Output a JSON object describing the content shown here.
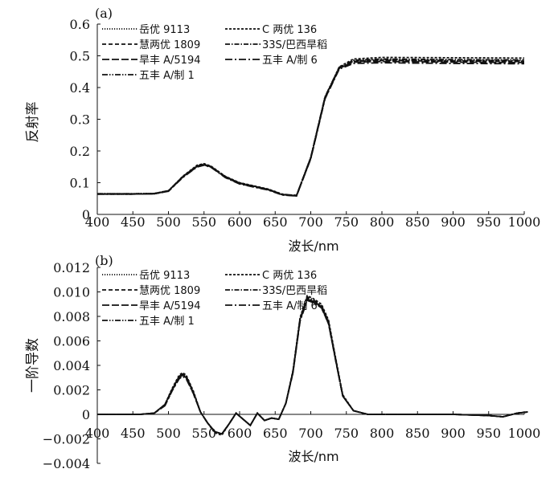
{
  "chart_data": [
    {
      "type": "line",
      "panel_label": "(a)",
      "title": "",
      "xlabel": "波长/nm",
      "ylabel": "反射率",
      "xlim": [
        400,
        1000
      ],
      "ylim": [
        0,
        0.6
      ],
      "x_ticks": [
        "400",
        "450",
        "500",
        "550",
        "600",
        "650",
        "700",
        "750",
        "800",
        "850",
        "900",
        "950",
        "1000"
      ],
      "y_ticks": [
        "0",
        "0.1",
        "0.2",
        "0.3",
        "0.4",
        "0.5",
        "0.6"
      ],
      "grid": false,
      "legend_position": "top",
      "series": [
        {
          "name": "岳优 9113",
          "style": "dotted",
          "x": [
            400,
            450,
            480,
            500,
            520,
            540,
            550,
            560,
            580,
            600,
            620,
            640,
            660,
            680,
            700,
            720,
            740,
            760,
            800,
            900,
            1000
          ],
          "y": [
            0.065,
            0.065,
            0.066,
            0.075,
            0.118,
            0.152,
            0.158,
            0.15,
            0.118,
            0.098,
            0.088,
            0.078,
            0.062,
            0.06,
            0.18,
            0.37,
            0.462,
            0.485,
            0.488,
            0.486,
            0.487
          ]
        },
        {
          "name": "C 两优 136",
          "style": "short-dash",
          "x": [
            400,
            450,
            480,
            500,
            520,
            540,
            550,
            560,
            580,
            600,
            620,
            640,
            660,
            680,
            700,
            720,
            740,
            760,
            800,
            900,
            1000
          ],
          "y": [
            0.064,
            0.064,
            0.065,
            0.074,
            0.12,
            0.155,
            0.16,
            0.152,
            0.12,
            0.1,
            0.09,
            0.08,
            0.064,
            0.059,
            0.178,
            0.368,
            0.465,
            0.49,
            0.495,
            0.494,
            0.493
          ]
        },
        {
          "name": "慧两优 1809",
          "style": "dash",
          "x": [
            400,
            450,
            480,
            500,
            520,
            540,
            550,
            560,
            580,
            600,
            620,
            640,
            660,
            680,
            700,
            720,
            740,
            760,
            800,
            900,
            1000
          ],
          "y": [
            0.064,
            0.064,
            0.065,
            0.073,
            0.117,
            0.15,
            0.156,
            0.149,
            0.117,
            0.097,
            0.087,
            0.078,
            0.062,
            0.058,
            0.176,
            0.365,
            0.46,
            0.482,
            0.485,
            0.483,
            0.482
          ]
        },
        {
          "name": "33S/巴西旱稻",
          "style": "dash-dot",
          "x": [
            400,
            450,
            480,
            500,
            520,
            540,
            550,
            560,
            580,
            600,
            620,
            640,
            660,
            680,
            700,
            720,
            740,
            760,
            800,
            900,
            1000
          ],
          "y": [
            0.065,
            0.065,
            0.066,
            0.074,
            0.119,
            0.153,
            0.159,
            0.151,
            0.119,
            0.099,
            0.089,
            0.079,
            0.063,
            0.06,
            0.179,
            0.369,
            0.463,
            0.486,
            0.49,
            0.488,
            0.487
          ]
        },
        {
          "name": "旱丰 A/5194",
          "style": "long-dash",
          "x": [
            400,
            450,
            480,
            500,
            520,
            540,
            550,
            560,
            580,
            600,
            620,
            640,
            660,
            680,
            700,
            720,
            740,
            760,
            800,
            900,
            1000
          ],
          "y": [
            0.064,
            0.064,
            0.065,
            0.074,
            0.118,
            0.151,
            0.157,
            0.15,
            0.118,
            0.098,
            0.088,
            0.078,
            0.062,
            0.059,
            0.177,
            0.366,
            0.461,
            0.48,
            0.482,
            0.48,
            0.479
          ]
        },
        {
          "name": "五丰 A/制 6",
          "style": "long-dash-dot",
          "x": [
            400,
            450,
            480,
            500,
            520,
            540,
            550,
            560,
            580,
            600,
            620,
            640,
            660,
            680,
            700,
            720,
            740,
            760,
            800,
            900,
            1000
          ],
          "y": [
            0.064,
            0.064,
            0.065,
            0.073,
            0.116,
            0.149,
            0.155,
            0.148,
            0.116,
            0.096,
            0.086,
            0.077,
            0.061,
            0.058,
            0.175,
            0.364,
            0.458,
            0.476,
            0.478,
            0.476,
            0.475
          ]
        },
        {
          "name": "五丰 A/制 1",
          "style": "dash-dot-dot",
          "x": [
            400,
            450,
            480,
            500,
            520,
            540,
            550,
            560,
            580,
            600,
            620,
            640,
            660,
            680,
            700,
            720,
            740,
            760,
            800,
            900,
            1000
          ],
          "y": [
            0.065,
            0.065,
            0.066,
            0.075,
            0.119,
            0.152,
            0.158,
            0.15,
            0.119,
            0.099,
            0.089,
            0.079,
            0.063,
            0.06,
            0.18,
            0.371,
            0.464,
            0.483,
            0.486,
            0.484,
            0.484
          ]
        }
      ]
    },
    {
      "type": "line",
      "panel_label": "(b)",
      "title": "",
      "xlabel": "波长/nm",
      "ylabel": "一阶导数",
      "xlim": [
        400,
        1000
      ],
      "ylim": [
        -0.004,
        0.012
      ],
      "x_ticks": [
        "400",
        "450",
        "500",
        "550",
        "600",
        "650",
        "700",
        "750",
        "800",
        "850",
        "900",
        "950",
        "1000"
      ],
      "y_ticks": [
        "−0.004",
        "−0.002",
        "0",
        "0.002",
        "0.004",
        "0.006",
        "0.008",
        "0.010",
        "0.012"
      ],
      "grid": false,
      "legend_position": "top",
      "series": [
        {
          "name": "岳优 9113",
          "style": "dotted",
          "x": [
            400,
            430,
            460,
            480,
            495,
            505,
            515,
            520,
            525,
            535,
            545,
            555,
            565,
            575,
            585,
            595,
            605,
            615,
            625,
            635,
            645,
            655,
            665,
            675,
            685,
            695,
            705,
            715,
            725,
            735,
            745,
            760,
            780,
            850,
            900,
            950,
            970,
            990,
            1005
          ],
          "y": [
            0,
            0,
            0,
            0.0001,
            0.0008,
            0.002,
            0.0031,
            0.0033,
            0.0031,
            0.0018,
            0.0002,
            -0.0007,
            -0.0014,
            -0.0016,
            -0.0008,
            0.0001,
            -0.0004,
            -0.0009,
            0.0001,
            -0.0005,
            -0.0003,
            -0.0004,
            0.0009,
            0.0035,
            0.0078,
            0.0095,
            0.0092,
            0.0088,
            0.0075,
            0.0045,
            0.0015,
            0.0003,
            0,
            0,
            0,
            -0.0001,
            -0.0002,
            0.0001,
            0.0002
          ]
        },
        {
          "name": "C 两优 136",
          "style": "short-dash",
          "x": [
            400,
            430,
            460,
            480,
            495,
            505,
            515,
            520,
            525,
            535,
            545,
            555,
            565,
            575,
            585,
            595,
            605,
            615,
            625,
            635,
            645,
            655,
            665,
            675,
            685,
            695,
            705,
            715,
            725,
            735,
            745,
            760,
            780,
            850,
            900,
            950,
            970,
            990,
            1005
          ],
          "y": [
            0,
            0,
            0,
            0.0001,
            0.0008,
            0.0021,
            0.0032,
            0.0034,
            0.0032,
            0.0019,
            0.0002,
            -0.0007,
            -0.0015,
            -0.0017,
            -0.0008,
            0.0001,
            -0.0004,
            -0.0009,
            0.0001,
            -0.0005,
            -0.0003,
            -0.0004,
            0.0009,
            0.0036,
            0.0079,
            0.0097,
            0.0094,
            0.009,
            0.0077,
            0.0046,
            0.0016,
            0.0003,
            0,
            0,
            0,
            -0.0001,
            -0.0002,
            0.0001,
            0.0002
          ]
        },
        {
          "name": "慧两优 1809",
          "style": "dash",
          "x": [
            400,
            430,
            460,
            480,
            495,
            505,
            515,
            520,
            525,
            535,
            545,
            555,
            565,
            575,
            585,
            595,
            605,
            615,
            625,
            635,
            645,
            655,
            665,
            675,
            685,
            695,
            705,
            715,
            725,
            735,
            745,
            760,
            780,
            850,
            900,
            950,
            970,
            990,
            1005
          ],
          "y": [
            0,
            0,
            0,
            0.0001,
            0.0007,
            0.0019,
            0.003,
            0.0032,
            0.003,
            0.0017,
            0.0002,
            -0.0007,
            -0.0014,
            -0.0016,
            -0.0008,
            0.0001,
            -0.0004,
            -0.0009,
            0.0001,
            -0.0005,
            -0.0003,
            -0.0004,
            0.0009,
            0.0034,
            0.0077,
            0.0094,
            0.0091,
            0.0087,
            0.0074,
            0.0044,
            0.0015,
            0.0003,
            0,
            0,
            0,
            -0.0001,
            -0.0002,
            0.0001,
            0.0002
          ]
        },
        {
          "name": "33S/巴西旱稻",
          "style": "dash-dot",
          "x": [
            400,
            430,
            460,
            480,
            495,
            505,
            515,
            520,
            525,
            535,
            545,
            555,
            565,
            575,
            585,
            595,
            605,
            615,
            625,
            635,
            645,
            655,
            665,
            675,
            685,
            695,
            705,
            715,
            725,
            735,
            745,
            760,
            780,
            850,
            900,
            950,
            970,
            990,
            1005
          ],
          "y": [
            0,
            0,
            0,
            0.0001,
            0.0008,
            0.002,
            0.0031,
            0.0033,
            0.0031,
            0.0018,
            0.0002,
            -0.0007,
            -0.0014,
            -0.0016,
            -0.0008,
            0.0001,
            -0.0004,
            -0.0009,
            0.0001,
            -0.0005,
            -0.0003,
            -0.0004,
            0.0009,
            0.0035,
            0.0078,
            0.0096,
            0.0093,
            0.0089,
            0.0076,
            0.0045,
            0.0015,
            0.0003,
            0,
            0,
            0,
            -0.0001,
            -0.0002,
            0.0001,
            0.0002
          ]
        },
        {
          "name": "旱丰 A/5194",
          "style": "long-dash",
          "x": [
            400,
            430,
            460,
            480,
            495,
            505,
            515,
            520,
            525,
            535,
            545,
            555,
            565,
            575,
            585,
            595,
            605,
            615,
            625,
            635,
            645,
            655,
            665,
            675,
            685,
            695,
            705,
            715,
            725,
            735,
            745,
            760,
            780,
            850,
            900,
            950,
            970,
            990,
            1005
          ],
          "y": [
            0,
            0,
            0,
            0.0001,
            0.0008,
            0.002,
            0.003,
            0.0032,
            0.003,
            0.0018,
            0.0002,
            -0.0007,
            -0.0014,
            -0.0016,
            -0.0008,
            0.0001,
            -0.0004,
            -0.0009,
            0.0001,
            -0.0005,
            -0.0003,
            -0.0004,
            0.0009,
            0.0035,
            0.0077,
            0.0094,
            0.0092,
            0.0088,
            0.0075,
            0.0044,
            0.0015,
            0.0003,
            0,
            0,
            0,
            -0.0001,
            -0.0002,
            0.0001,
            0.0002
          ]
        },
        {
          "name": "五丰 A/制 6",
          "style": "long-dash-dot",
          "x": [
            400,
            430,
            460,
            480,
            495,
            505,
            515,
            520,
            525,
            535,
            545,
            555,
            565,
            575,
            585,
            595,
            605,
            615,
            625,
            635,
            645,
            655,
            665,
            675,
            685,
            695,
            705,
            715,
            725,
            735,
            745,
            760,
            780,
            850,
            900,
            950,
            970,
            990,
            1005
          ],
          "y": [
            0,
            0,
            0,
            0.0001,
            0.0007,
            0.0019,
            0.0029,
            0.0031,
            0.0029,
            0.0017,
            0.0002,
            -0.0007,
            -0.0014,
            -0.0016,
            -0.0008,
            0.0001,
            -0.0004,
            -0.0009,
            0.0001,
            -0.0005,
            -0.0003,
            -0.0004,
            0.0009,
            0.0034,
            0.0076,
            0.0093,
            0.0091,
            0.0087,
            0.0074,
            0.0044,
            0.0015,
            0.0003,
            0,
            0,
            0,
            -0.0001,
            -0.0002,
            0.0001,
            0.0002
          ]
        },
        {
          "name": "五丰 A/制 1",
          "style": "dash-dot-dot",
          "x": [
            400,
            430,
            460,
            480,
            495,
            505,
            515,
            520,
            525,
            535,
            545,
            555,
            565,
            575,
            585,
            595,
            605,
            615,
            625,
            635,
            645,
            655,
            665,
            675,
            685,
            695,
            705,
            715,
            725,
            735,
            745,
            760,
            780,
            850,
            900,
            950,
            970,
            990,
            1005
          ],
          "y": [
            0,
            0,
            0,
            0.0001,
            0.0008,
            0.002,
            0.0031,
            0.0033,
            0.0031,
            0.0018,
            0.0002,
            -0.0007,
            -0.0014,
            -0.0016,
            -0.0008,
            0.0001,
            -0.0004,
            -0.0009,
            0.0001,
            -0.0005,
            -0.0003,
            -0.0004,
            0.0009,
            0.0035,
            0.0078,
            0.0095,
            0.0092,
            0.0088,
            0.0075,
            0.0045,
            0.0015,
            0.0003,
            0,
            0,
            0,
            -0.0001,
            -0.0002,
            0.0001,
            0.0002
          ]
        }
      ]
    }
  ]
}
